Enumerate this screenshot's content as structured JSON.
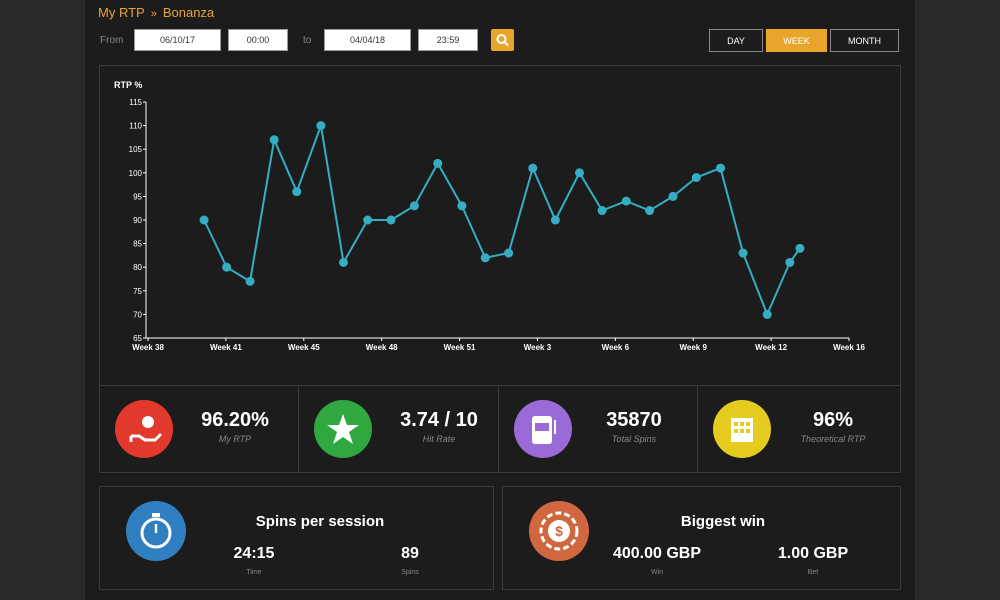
{
  "breadcrumb": {
    "items": [
      "My RTP",
      "Bonanza"
    ],
    "separator": "»"
  },
  "filters": {
    "from_label": "From",
    "from_date": "06/10/17",
    "from_time": "00:00",
    "to_label": "to",
    "to_date": "04/04/18",
    "to_time": "23:59"
  },
  "periods": {
    "options": [
      "DAY",
      "WEEK",
      "MONTH"
    ],
    "active": "WEEK"
  },
  "chart_data": {
    "type": "line",
    "y_label": "RTP %",
    "xlim": [
      0,
      9
    ],
    "xticks": [
      {
        "value": 0,
        "label": "Week 38"
      },
      {
        "value": 1,
        "label": "Week 41"
      },
      {
        "value": 2,
        "label": "Week 45"
      },
      {
        "value": 3,
        "label": "Week 48"
      },
      {
        "value": 4,
        "label": "Week 51"
      },
      {
        "value": 5,
        "label": "Week 3"
      },
      {
        "value": 6,
        "label": "Week 6"
      },
      {
        "value": 7,
        "label": "Week 9"
      },
      {
        "value": 8,
        "label": "Week 12"
      },
      {
        "value": 9,
        "label": "Week 16"
      }
    ],
    "ylim": [
      65,
      115
    ],
    "yticks": [
      65,
      70,
      75,
      80,
      85,
      90,
      95,
      100,
      105,
      110,
      115
    ],
    "grid": false,
    "series": [
      {
        "color": "#35aec4",
        "x": [
          0.72,
          1.01,
          1.31,
          1.62,
          1.91,
          2.22,
          2.51,
          2.82,
          3.12,
          3.42,
          3.72,
          4.03,
          4.33,
          4.63,
          4.94,
          5.23,
          5.54,
          5.83,
          6.14,
          6.44,
          6.74,
          7.04,
          7.35,
          7.64,
          7.95,
          8.24,
          8.37
        ],
        "values": [
          90,
          80,
          77,
          107,
          96,
          110,
          81,
          90,
          90,
          93,
          102,
          93,
          82,
          83,
          101,
          90,
          100,
          92,
          94,
          92,
          95,
          99,
          101,
          83,
          70,
          81,
          84
        ]
      }
    ]
  },
  "stats": [
    {
      "value": "96.20%",
      "label": "My RTP",
      "color": "#e2392c"
    },
    {
      "value": "3.74 / 10",
      "label": "Hit Rate",
      "color": "#2fa93f"
    },
    {
      "value": "35870",
      "label": "Total Spins",
      "color": "#9a6ad6"
    },
    {
      "value": "96%",
      "label": "Theoretical RTP",
      "color": "#e6cb1f"
    }
  ],
  "cards": [
    {
      "title": "Spins per session",
      "color": "#2f7fc1",
      "items": [
        {
          "value": "24:15",
          "label": "Time"
        },
        {
          "value": "89",
          "label": "Spins"
        }
      ]
    },
    {
      "title": "Biggest win",
      "color": "#d0673f",
      "items": [
        {
          "value": "400.00 GBP",
          "label": "Win"
        },
        {
          "value": "1.00 GBP",
          "label": "Bet"
        }
      ]
    }
  ]
}
